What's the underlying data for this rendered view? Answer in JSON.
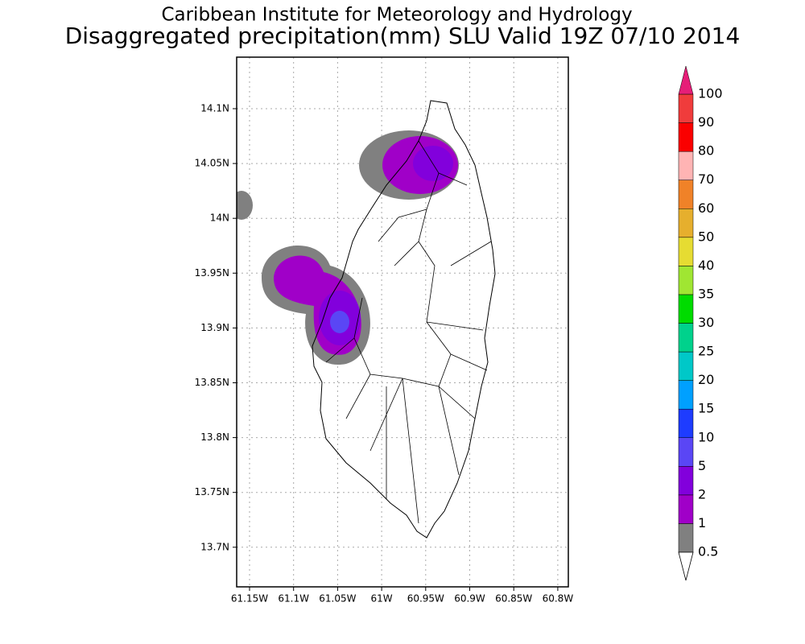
{
  "title": "Caribbean Institute for Meteorology and Hydrology",
  "subtitle": "Disaggregated precipitation(mm) SLU Valid 19Z 07/10 2014",
  "map": {
    "xticks": [
      "61.15W",
      "61.1W",
      "61.05W",
      "61W",
      "60.95W",
      "60.9W",
      "60.85W",
      "60.8W"
    ],
    "yticks": [
      "14.1N",
      "14.05N",
      "14N",
      "13.95N",
      "13.9N",
      "13.85N",
      "13.8N",
      "13.75N",
      "13.7N"
    ],
    "grid": true
  },
  "colorbar": {
    "levels": [
      0.5,
      1,
      2,
      5,
      10,
      15,
      20,
      25,
      30,
      35,
      40,
      50,
      60,
      70,
      80,
      90,
      100
    ],
    "colors": [
      "#808080",
      "#a000c8",
      "#8200dc",
      "#5a46f5",
      "#1e3cff",
      "#00a0ff",
      "#00c8c8",
      "#00d28c",
      "#00dc00",
      "#a0e632",
      "#e6dc32",
      "#e6af2d",
      "#f08228",
      "#ffb4b4",
      "#fa0000",
      "#f03c3c"
    ],
    "under_color": "#ffffff",
    "over_color": "#e61e78"
  }
}
